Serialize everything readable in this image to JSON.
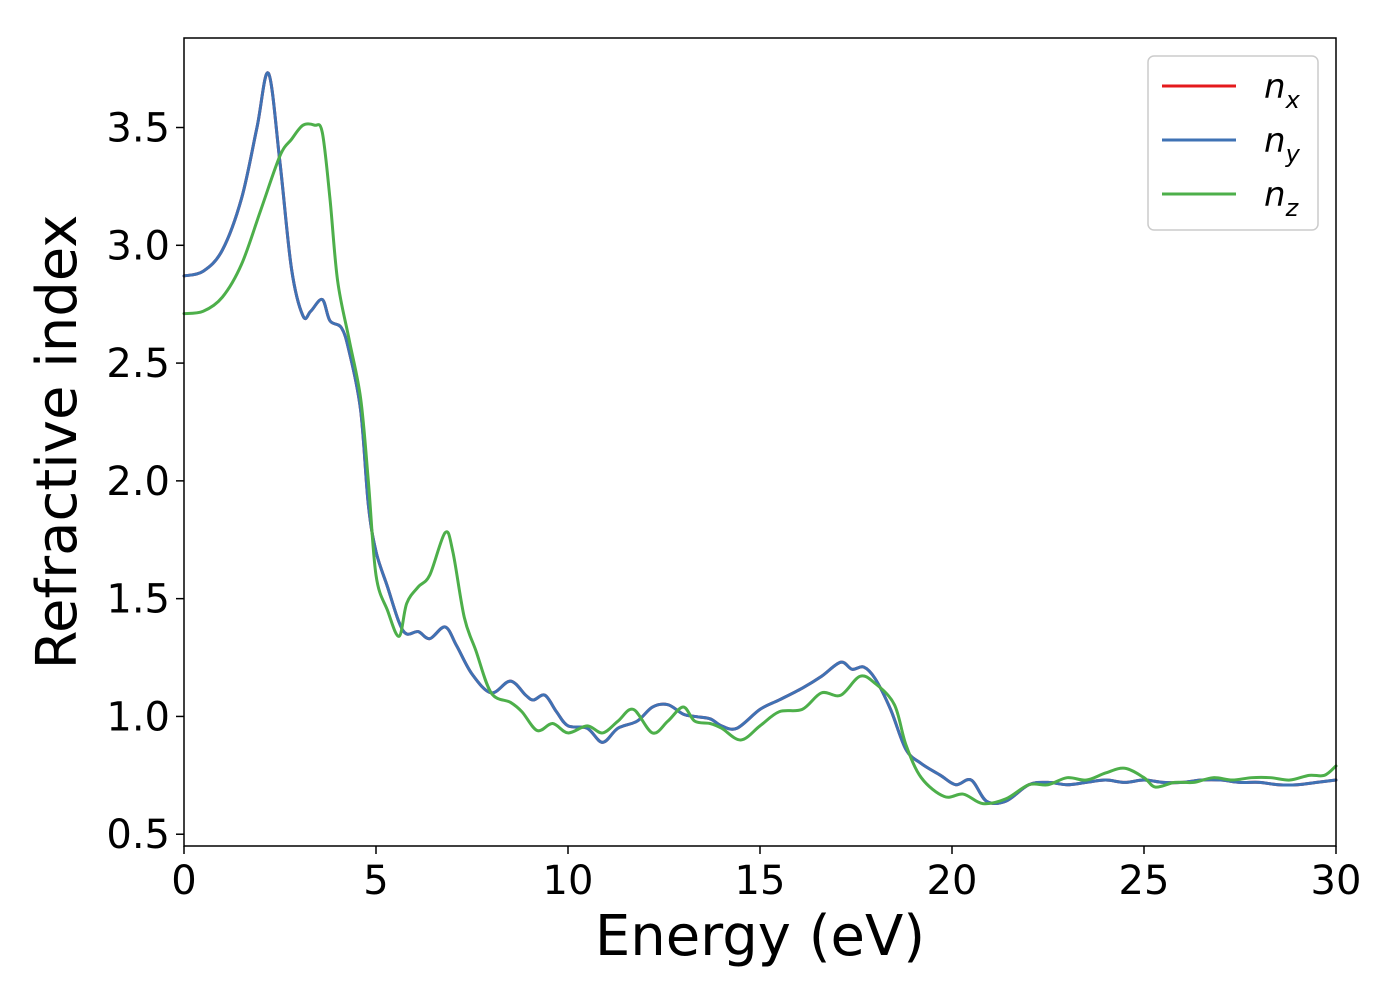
{
  "chart_data": {
    "type": "line",
    "xlabel": "Energy (eV)",
    "ylabel": "Refractive index",
    "xlim": [
      0,
      30
    ],
    "ylim": [
      0.45,
      3.88
    ],
    "xticks": [
      0,
      5,
      10,
      15,
      20,
      25,
      30
    ],
    "xtick_labels": [
      "0",
      "5",
      "10",
      "15",
      "20",
      "25",
      "30"
    ],
    "yticks": [
      0.5,
      1.0,
      1.5,
      2.0,
      2.5,
      3.0,
      3.5
    ],
    "ytick_labels": [
      "0.5",
      "1.0",
      "1.5",
      "2.0",
      "2.5",
      "3.0",
      "3.5"
    ],
    "grid": false,
    "legend_position": "top-right",
    "series": [
      {
        "name": "n_x",
        "label_base": "n",
        "label_sub": "x",
        "color": "#e41a1c",
        "x": [
          0,
          0.5,
          1,
          1.5,
          1.9,
          2.2,
          2.5,
          2.8,
          3.1,
          3.3,
          3.6,
          3.8,
          4.1,
          4.3,
          4.6,
          4.8,
          5.0,
          5.3,
          5.6,
          5.8,
          6.1,
          6.4,
          6.8,
          7.1,
          7.5,
          8,
          8.5,
          8.9,
          9.1,
          9.4,
          9.7,
          10,
          10.5,
          10.9,
          11.3,
          11.8,
          12.2,
          12.6,
          13.0,
          13.3,
          13.7,
          14,
          14.4,
          15,
          15.5,
          16.1,
          16.6,
          17.1,
          17.4,
          17.7,
          18,
          18.4,
          18.8,
          19.2,
          19.7,
          20.1,
          20.5,
          20.9,
          21.4,
          22,
          22.5,
          23,
          23.5,
          24,
          24.5,
          25,
          25.5,
          26,
          26.5,
          27,
          27.5,
          28,
          28.5,
          29,
          29.5,
          30
        ],
        "y": [
          2.87,
          2.89,
          2.98,
          3.2,
          3.5,
          3.73,
          3.35,
          2.9,
          2.7,
          2.72,
          2.77,
          2.68,
          2.65,
          2.55,
          2.3,
          1.9,
          1.7,
          1.55,
          1.4,
          1.35,
          1.36,
          1.33,
          1.38,
          1.3,
          1.18,
          1.1,
          1.15,
          1.09,
          1.07,
          1.09,
          1.02,
          0.96,
          0.95,
          0.89,
          0.95,
          0.98,
          1.04,
          1.05,
          1.01,
          1.0,
          0.99,
          0.96,
          0.95,
          1.03,
          1.07,
          1.12,
          1.17,
          1.23,
          1.2,
          1.21,
          1.16,
          1.03,
          0.86,
          0.8,
          0.75,
          0.71,
          0.73,
          0.64,
          0.64,
          0.71,
          0.72,
          0.71,
          0.72,
          0.73,
          0.72,
          0.73,
          0.72,
          0.72,
          0.73,
          0.73,
          0.72,
          0.72,
          0.71,
          0.71,
          0.72,
          0.73
        ]
      },
      {
        "name": "n_y",
        "label_base": "n",
        "label_sub": "y",
        "color": "#3f72b4",
        "x": [
          0,
          0.5,
          1,
          1.5,
          1.9,
          2.2,
          2.5,
          2.8,
          3.1,
          3.3,
          3.6,
          3.8,
          4.1,
          4.3,
          4.6,
          4.8,
          5.0,
          5.3,
          5.6,
          5.8,
          6.1,
          6.4,
          6.8,
          7.1,
          7.5,
          8,
          8.5,
          8.9,
          9.1,
          9.4,
          9.7,
          10,
          10.5,
          10.9,
          11.3,
          11.8,
          12.2,
          12.6,
          13.0,
          13.3,
          13.7,
          14,
          14.4,
          15,
          15.5,
          16.1,
          16.6,
          17.1,
          17.4,
          17.7,
          18,
          18.4,
          18.8,
          19.2,
          19.7,
          20.1,
          20.5,
          20.9,
          21.4,
          22,
          22.5,
          23,
          23.5,
          24,
          24.5,
          25,
          25.5,
          26,
          26.5,
          27,
          27.5,
          28,
          28.5,
          29,
          29.5,
          30
        ],
        "y": [
          2.87,
          2.89,
          2.98,
          3.2,
          3.5,
          3.73,
          3.35,
          2.9,
          2.7,
          2.72,
          2.77,
          2.68,
          2.65,
          2.55,
          2.3,
          1.9,
          1.7,
          1.55,
          1.4,
          1.35,
          1.36,
          1.33,
          1.38,
          1.3,
          1.18,
          1.1,
          1.15,
          1.09,
          1.07,
          1.09,
          1.02,
          0.96,
          0.95,
          0.89,
          0.95,
          0.98,
          1.04,
          1.05,
          1.01,
          1.0,
          0.99,
          0.96,
          0.95,
          1.03,
          1.07,
          1.12,
          1.17,
          1.23,
          1.2,
          1.21,
          1.16,
          1.03,
          0.86,
          0.8,
          0.75,
          0.71,
          0.73,
          0.64,
          0.64,
          0.71,
          0.72,
          0.71,
          0.72,
          0.73,
          0.72,
          0.73,
          0.72,
          0.72,
          0.73,
          0.73,
          0.72,
          0.72,
          0.71,
          0.71,
          0.72,
          0.73
        ]
      },
      {
        "name": "n_z",
        "label_base": "n",
        "label_sub": "z",
        "color": "#4daf4a",
        "x": [
          0,
          0.5,
          1,
          1.5,
          2,
          2.5,
          2.8,
          3.1,
          3.4,
          3.6,
          3.8,
          4.0,
          4.3,
          4.6,
          4.8,
          5.0,
          5.3,
          5.6,
          5.8,
          6.1,
          6.4,
          6.8,
          7.0,
          7.3,
          7.6,
          8,
          8.5,
          8.8,
          9.2,
          9.6,
          10,
          10.5,
          10.9,
          11.3,
          11.7,
          12.2,
          12.6,
          13.0,
          13.3,
          13.7,
          14.0,
          14.5,
          15,
          15.5,
          16.1,
          16.6,
          17.1,
          17.6,
          18,
          18.5,
          18.8,
          19.2,
          19.8,
          20.3,
          20.8,
          21.4,
          22,
          22.5,
          23,
          23.5,
          24,
          24.5,
          25,
          25.3,
          25.8,
          26.3,
          26.8,
          27.3,
          27.8,
          28.3,
          28.8,
          29.3,
          29.7,
          30
        ],
        "y": [
          2.71,
          2.72,
          2.78,
          2.92,
          3.15,
          3.38,
          3.45,
          3.51,
          3.51,
          3.48,
          3.2,
          2.85,
          2.6,
          2.35,
          2.0,
          1.6,
          1.45,
          1.34,
          1.48,
          1.55,
          1.6,
          1.78,
          1.7,
          1.42,
          1.28,
          1.1,
          1.06,
          1.02,
          0.94,
          0.97,
          0.93,
          0.96,
          0.93,
          0.98,
          1.03,
          0.93,
          0.98,
          1.04,
          0.98,
          0.97,
          0.95,
          0.9,
          0.96,
          1.02,
          1.03,
          1.1,
          1.09,
          1.17,
          1.14,
          1.05,
          0.88,
          0.74,
          0.66,
          0.67,
          0.63,
          0.65,
          0.71,
          0.71,
          0.74,
          0.73,
          0.76,
          0.78,
          0.74,
          0.7,
          0.72,
          0.72,
          0.74,
          0.73,
          0.74,
          0.74,
          0.73,
          0.75,
          0.75,
          0.79
        ]
      }
    ]
  }
}
